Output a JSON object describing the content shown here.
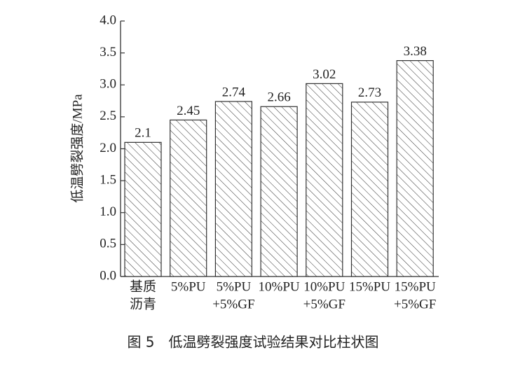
{
  "chart_data": {
    "type": "bar",
    "y_label": "低温劈裂强度/MPa",
    "caption": "图 5　低温劈裂强度试验结果对比柱状图",
    "categories": [
      [
        "基质",
        "沥青"
      ],
      [
        "5%PU"
      ],
      [
        "5%PU",
        "+5%GF"
      ],
      [
        "10%PU"
      ],
      [
        "10%PU",
        "+5%GF"
      ],
      [
        "15%PU"
      ],
      [
        "15%PU",
        "+5%GF"
      ]
    ],
    "values": [
      2.1,
      2.45,
      2.74,
      2.66,
      3.02,
      2.73,
      3.38
    ],
    "color": "#333333",
    "pattern": "hatch",
    "ylim": [
      0,
      4
    ],
    "yticks": [
      {
        "value": 0,
        "label": "0.0"
      },
      0.5,
      {
        "value": 1,
        "label": "1.0"
      },
      1.5,
      {
        "value": 2,
        "label": "2.0"
      },
      2.5,
      {
        "value": 3,
        "label": "3.0"
      },
      3.5,
      {
        "value": 4,
        "label": "4.0"
      }
    ]
  }
}
